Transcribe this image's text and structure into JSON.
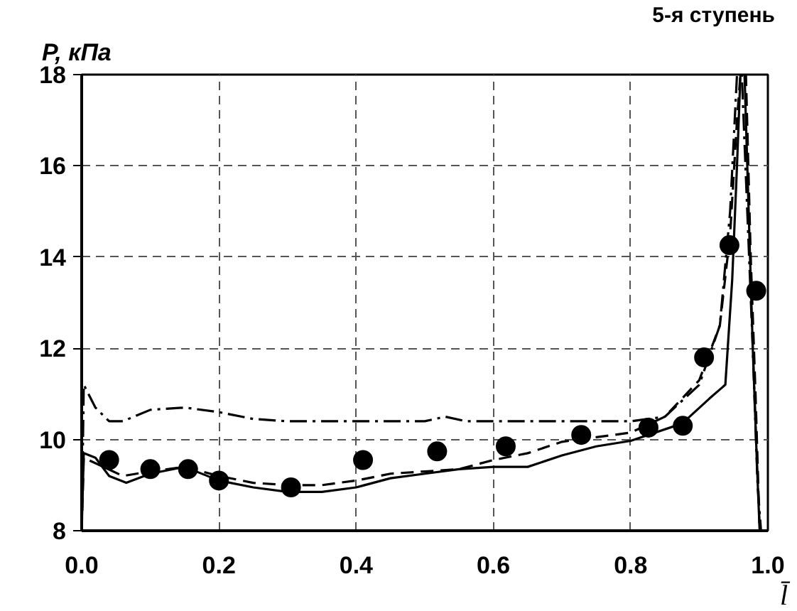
{
  "chart_data": {
    "type": "line",
    "title": "5-я ступень",
    "xlabel": "l̄",
    "ylabel": "P, кПа",
    "xlim": [
      0,
      1
    ],
    "ylim": [
      8,
      18
    ],
    "xticks": [
      {
        "value": 0,
        "label": "0.0"
      },
      0.2,
      0.4,
      0.6,
      0.8,
      {
        "value": 1,
        "label": "1.0"
      }
    ],
    "yticks": [
      8,
      10,
      12,
      14,
      16,
      18
    ],
    "grid": true,
    "series": [
      {
        "color": "#000000",
        "line_style": "solid",
        "x": [
          0,
          0.003,
          0.02,
          0.04,
          0.065,
          0.1,
          0.15,
          0.2,
          0.25,
          0.3,
          0.35,
          0.4,
          0.45,
          0.5,
          0.55,
          0.6,
          0.65,
          0.7,
          0.75,
          0.8,
          0.875,
          0.915,
          0.938,
          0.948,
          0.955,
          0.96,
          0.966,
          0.972,
          0.978,
          0.984,
          0.988
        ],
        "values": [
          8,
          9.7,
          9.6,
          9.2,
          9.05,
          9.25,
          9.4,
          9.1,
          8.95,
          8.85,
          8.85,
          8.95,
          9.15,
          9.25,
          9.35,
          9.4,
          9.4,
          9.65,
          9.85,
          9.97,
          10.35,
          10.9,
          11.2,
          13.5,
          16,
          18,
          18,
          15,
          12,
          9.5,
          8
        ]
      },
      {
        "color": "#000000",
        "line_style": "dashed",
        "x": [
          0,
          0.003,
          0.06,
          0.1,
          0.15,
          0.2,
          0.25,
          0.3,
          0.35,
          0.4,
          0.45,
          0.5,
          0.55,
          0.6,
          0.65,
          0.7,
          0.75,
          0.8,
          0.85,
          0.9,
          0.93,
          0.945,
          0.955,
          0.96,
          0.968,
          0.975,
          0.982,
          0.988
        ],
        "values": [
          8,
          9.6,
          9.2,
          9.3,
          9.4,
          9.2,
          9.05,
          9.0,
          9.0,
          9.1,
          9.25,
          9.3,
          9.35,
          9.55,
          9.7,
          9.95,
          10.05,
          10.15,
          10.5,
          11.3,
          12.5,
          14.5,
          17,
          18,
          18,
          14,
          11,
          8
        ]
      },
      {
        "color": "#000000",
        "line_style": "dashdot",
        "x": [
          0,
          0.003,
          0.02,
          0.04,
          0.06,
          0.1,
          0.15,
          0.2,
          0.25,
          0.3,
          0.5,
          0.53,
          0.56,
          0.8,
          0.85,
          0.9,
          0.93,
          0.945,
          0.955,
          0.962,
          0.97,
          0.978,
          0.985,
          0.99
        ],
        "values": [
          8,
          11.2,
          10.7,
          10.4,
          10.4,
          10.65,
          10.7,
          10.6,
          10.45,
          10.4,
          10.4,
          10.5,
          10.4,
          10.4,
          10.5,
          11.2,
          12.5,
          15,
          18,
          18,
          15,
          12,
          9,
          8
        ]
      },
      {
        "type": "scatter",
        "color": "#000000",
        "marker": "circle",
        "x": [
          0.04,
          0.1,
          0.155,
          0.2,
          0.305,
          0.41,
          0.518,
          0.618,
          0.728,
          0.826,
          0.876,
          0.907,
          0.944,
          0.983
        ],
        "values": [
          9.55,
          9.35,
          9.35,
          9.1,
          8.95,
          9.55,
          9.74,
          9.85,
          10.1,
          10.26,
          10.3,
          11.8,
          14.26,
          13.26
        ]
      }
    ]
  }
}
